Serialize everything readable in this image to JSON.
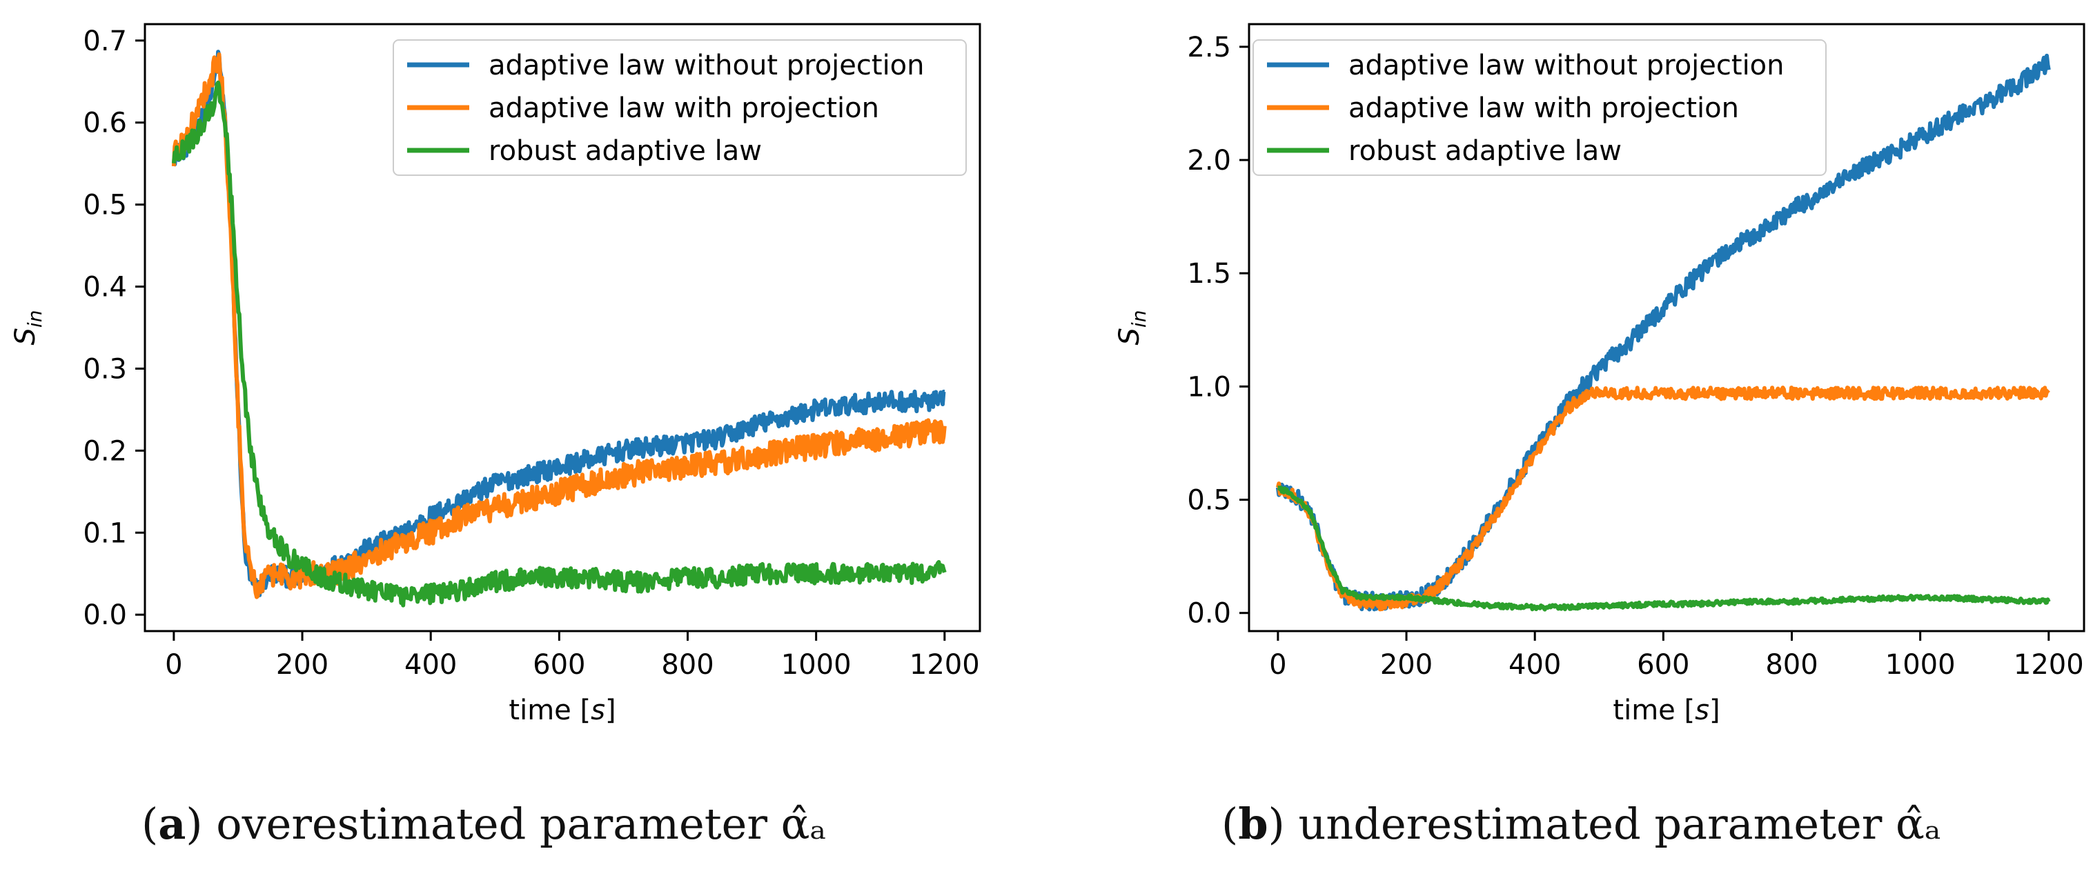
{
  "chart_data": [
    {
      "type": "line",
      "panel": "a",
      "title": "",
      "xlabel": "time [s]",
      "ylabel": "S_in",
      "xlim": [
        -45,
        1255
      ],
      "ylim": [
        -0.02,
        0.72
      ],
      "xticks": [
        0,
        200,
        400,
        600,
        800,
        1000,
        1200
      ],
      "yticks": [
        0.0,
        0.1,
        0.2,
        0.3,
        0.4,
        0.5,
        0.6,
        0.7
      ],
      "ytick_labels": [
        "0.0",
        "0.1",
        "0.2",
        "0.3",
        "0.4",
        "0.5",
        "0.6",
        "0.7"
      ],
      "grid": false,
      "legend": "top-right",
      "series": [
        {
          "name": "adaptive law without projection",
          "color": "#1f77b4",
          "noise": 0.012,
          "x": [
            0,
            20,
            40,
            60,
            70,
            80,
            90,
            100,
            110,
            120,
            130,
            140,
            150,
            160,
            180,
            200,
            220,
            250,
            280,
            300,
            330,
            360,
            400,
            450,
            500,
            550,
            600,
            650,
            700,
            750,
            800,
            850,
            900,
            950,
            1000,
            1050,
            1100,
            1150,
            1200
          ],
          "y": [
            0.56,
            0.57,
            0.6,
            0.64,
            0.68,
            0.6,
            0.45,
            0.25,
            0.08,
            0.04,
            0.03,
            0.04,
            0.05,
            0.05,
            0.045,
            0.045,
            0.05,
            0.06,
            0.07,
            0.08,
            0.09,
            0.1,
            0.12,
            0.14,
            0.16,
            0.17,
            0.18,
            0.19,
            0.2,
            0.205,
            0.21,
            0.215,
            0.23,
            0.24,
            0.25,
            0.255,
            0.26,
            0.26,
            0.26
          ]
        },
        {
          "name": "adaptive law with projection",
          "color": "#ff7f0e",
          "noise": 0.015,
          "x": [
            0,
            20,
            40,
            60,
            70,
            80,
            90,
            100,
            110,
            120,
            130,
            140,
            150,
            160,
            180,
            200,
            220,
            250,
            280,
            300,
            330,
            360,
            400,
            450,
            500,
            550,
            600,
            650,
            700,
            750,
            800,
            850,
            900,
            950,
            1000,
            1050,
            1100,
            1150,
            1200
          ],
          "y": [
            0.56,
            0.58,
            0.62,
            0.66,
            0.68,
            0.6,
            0.45,
            0.25,
            0.1,
            0.05,
            0.03,
            0.04,
            0.05,
            0.05,
            0.045,
            0.045,
            0.05,
            0.05,
            0.06,
            0.07,
            0.08,
            0.09,
            0.1,
            0.12,
            0.13,
            0.14,
            0.15,
            0.16,
            0.17,
            0.175,
            0.18,
            0.185,
            0.19,
            0.2,
            0.205,
            0.21,
            0.215,
            0.22,
            0.225
          ]
        },
        {
          "name": "robust adaptive law",
          "color": "#2ca02c",
          "noise": 0.012,
          "x": [
            0,
            20,
            40,
            60,
            70,
            80,
            90,
            100,
            110,
            120,
            130,
            140,
            150,
            160,
            180,
            200,
            220,
            250,
            280,
            300,
            330,
            360,
            400,
            450,
            500,
            550,
            600,
            650,
            700,
            750,
            800,
            850,
            900,
            950,
            1000,
            1050,
            1100,
            1150,
            1200
          ],
          "y": [
            0.56,
            0.57,
            0.59,
            0.62,
            0.64,
            0.6,
            0.5,
            0.38,
            0.27,
            0.2,
            0.15,
            0.12,
            0.1,
            0.09,
            0.07,
            0.06,
            0.05,
            0.04,
            0.035,
            0.03,
            0.025,
            0.022,
            0.025,
            0.03,
            0.04,
            0.045,
            0.045,
            0.045,
            0.04,
            0.04,
            0.045,
            0.045,
            0.05,
            0.05,
            0.05,
            0.05,
            0.05,
            0.05,
            0.055
          ]
        }
      ]
    },
    {
      "type": "line",
      "panel": "b",
      "title": "",
      "xlabel": "time [s]",
      "ylabel": "S_in",
      "xlim": [
        -45,
        1255
      ],
      "ylim": [
        -0.08,
        2.6
      ],
      "xticks": [
        0,
        200,
        400,
        600,
        800,
        1000,
        1200
      ],
      "yticks": [
        0.0,
        0.5,
        1.0,
        1.5,
        2.0,
        2.5
      ],
      "ytick_labels": [
        "0.0",
        "0.5",
        "1.0",
        "1.5",
        "2.0",
        "2.5"
      ],
      "grid": false,
      "legend": "top-left",
      "series": [
        {
          "name": "adaptive law without projection",
          "color": "#1f77b4",
          "noise": 0.04,
          "x": [
            0,
            20,
            50,
            80,
            100,
            130,
            160,
            200,
            230,
            260,
            300,
            350,
            400,
            450,
            480,
            500,
            550,
            600,
            650,
            700,
            750,
            800,
            850,
            900,
            950,
            1000,
            1050,
            1100,
            1150,
            1200
          ],
          "y": [
            0.55,
            0.53,
            0.45,
            0.2,
            0.08,
            0.05,
            0.05,
            0.06,
            0.08,
            0.15,
            0.28,
            0.5,
            0.72,
            0.92,
            1.02,
            1.08,
            1.2,
            1.35,
            1.48,
            1.6,
            1.68,
            1.78,
            1.85,
            1.95,
            2.02,
            2.1,
            2.18,
            2.25,
            2.33,
            2.43
          ]
        },
        {
          "name": "adaptive law with projection",
          "color": "#ff7f0e",
          "noise": 0.025,
          "x": [
            0,
            20,
            50,
            80,
            100,
            130,
            160,
            200,
            230,
            260,
            300,
            350,
            400,
            450,
            480,
            500,
            550,
            600,
            650,
            700,
            750,
            800,
            850,
            900,
            950,
            1000,
            1050,
            1100,
            1150,
            1200
          ],
          "y": [
            0.55,
            0.53,
            0.44,
            0.2,
            0.08,
            0.05,
            0.04,
            0.05,
            0.07,
            0.14,
            0.27,
            0.48,
            0.7,
            0.9,
            0.97,
            0.97,
            0.97,
            0.97,
            0.97,
            0.97,
            0.97,
            0.97,
            0.97,
            0.97,
            0.97,
            0.97,
            0.97,
            0.97,
            0.97,
            0.97
          ]
        },
        {
          "name": "robust adaptive law",
          "color": "#2ca02c",
          "noise": 0.01,
          "x": [
            0,
            20,
            50,
            80,
            100,
            130,
            160,
            200,
            230,
            260,
            300,
            350,
            400,
            450,
            480,
            500,
            550,
            600,
            650,
            700,
            750,
            800,
            850,
            900,
            950,
            1000,
            1050,
            1100,
            1150,
            1200
          ],
          "y": [
            0.55,
            0.53,
            0.45,
            0.22,
            0.1,
            0.07,
            0.07,
            0.07,
            0.06,
            0.05,
            0.04,
            0.03,
            0.025,
            0.025,
            0.03,
            0.03,
            0.035,
            0.04,
            0.04,
            0.045,
            0.05,
            0.05,
            0.055,
            0.06,
            0.065,
            0.07,
            0.065,
            0.06,
            0.055,
            0.05
          ]
        }
      ]
    }
  ],
  "captions": [
    {
      "label": "a",
      "text": " overestimated parameter α̂ₐ"
    },
    {
      "label": "b",
      "text": " underestimated parameter α̂ₐ"
    }
  ]
}
